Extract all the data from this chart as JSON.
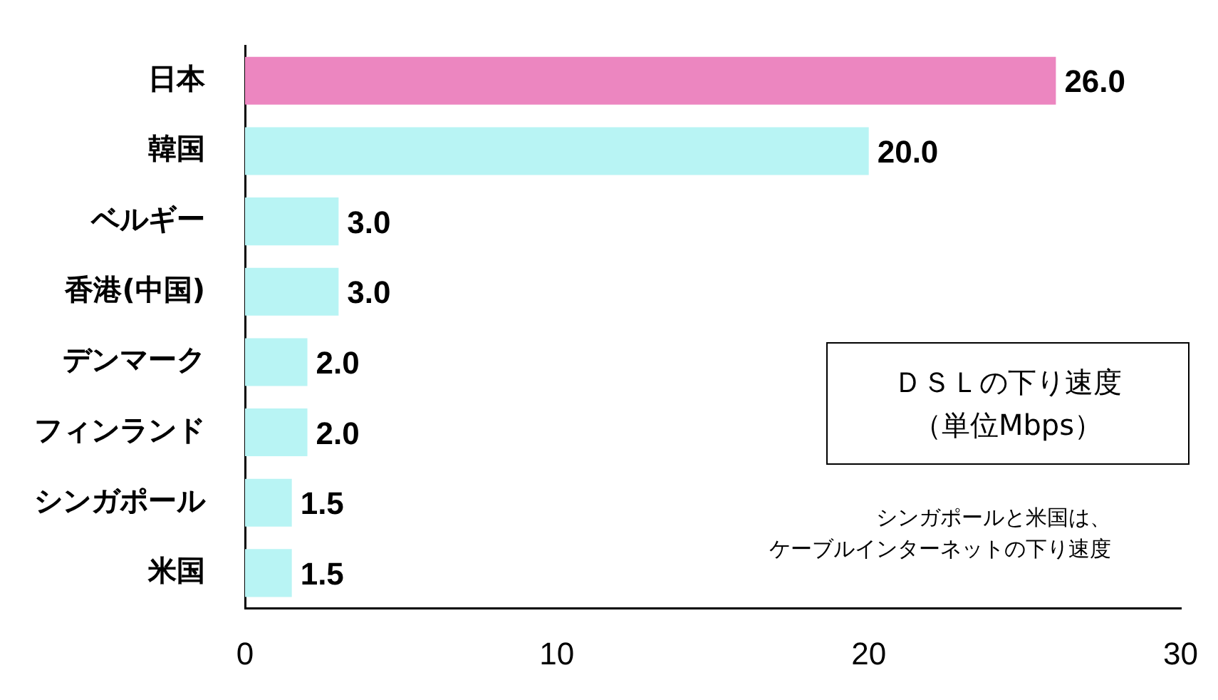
{
  "chart_data": {
    "type": "bar",
    "orientation": "horizontal",
    "categories": [
      "日本",
      "韓国",
      "ベルギー",
      "香港(中国)",
      "デンマーク",
      "フィンランド",
      "シンガポール",
      "米国"
    ],
    "values": [
      26.0,
      20.0,
      3.0,
      3.0,
      2.0,
      2.0,
      1.5,
      1.5
    ],
    "colors": [
      "#ec86c0",
      "#b8f4f4",
      "#b8f4f4",
      "#b8f4f4",
      "#b8f4f4",
      "#b8f4f4",
      "#b8f4f4",
      "#b8f4f4"
    ],
    "value_labels": [
      "26.0",
      "20.0",
      "3.0",
      "3.0",
      "2.0",
      "2.0",
      "1.5",
      "1.5"
    ],
    "xlim": [
      0,
      30
    ],
    "xticks": [
      0,
      10,
      20,
      30
    ],
    "grid": false,
    "legend": false,
    "annotations": [
      "ＤＳＬの下り速度",
      "（単位Mbps）",
      "シンガポールと米国は、",
      "ケーブルインターネットの下り速度"
    ]
  }
}
